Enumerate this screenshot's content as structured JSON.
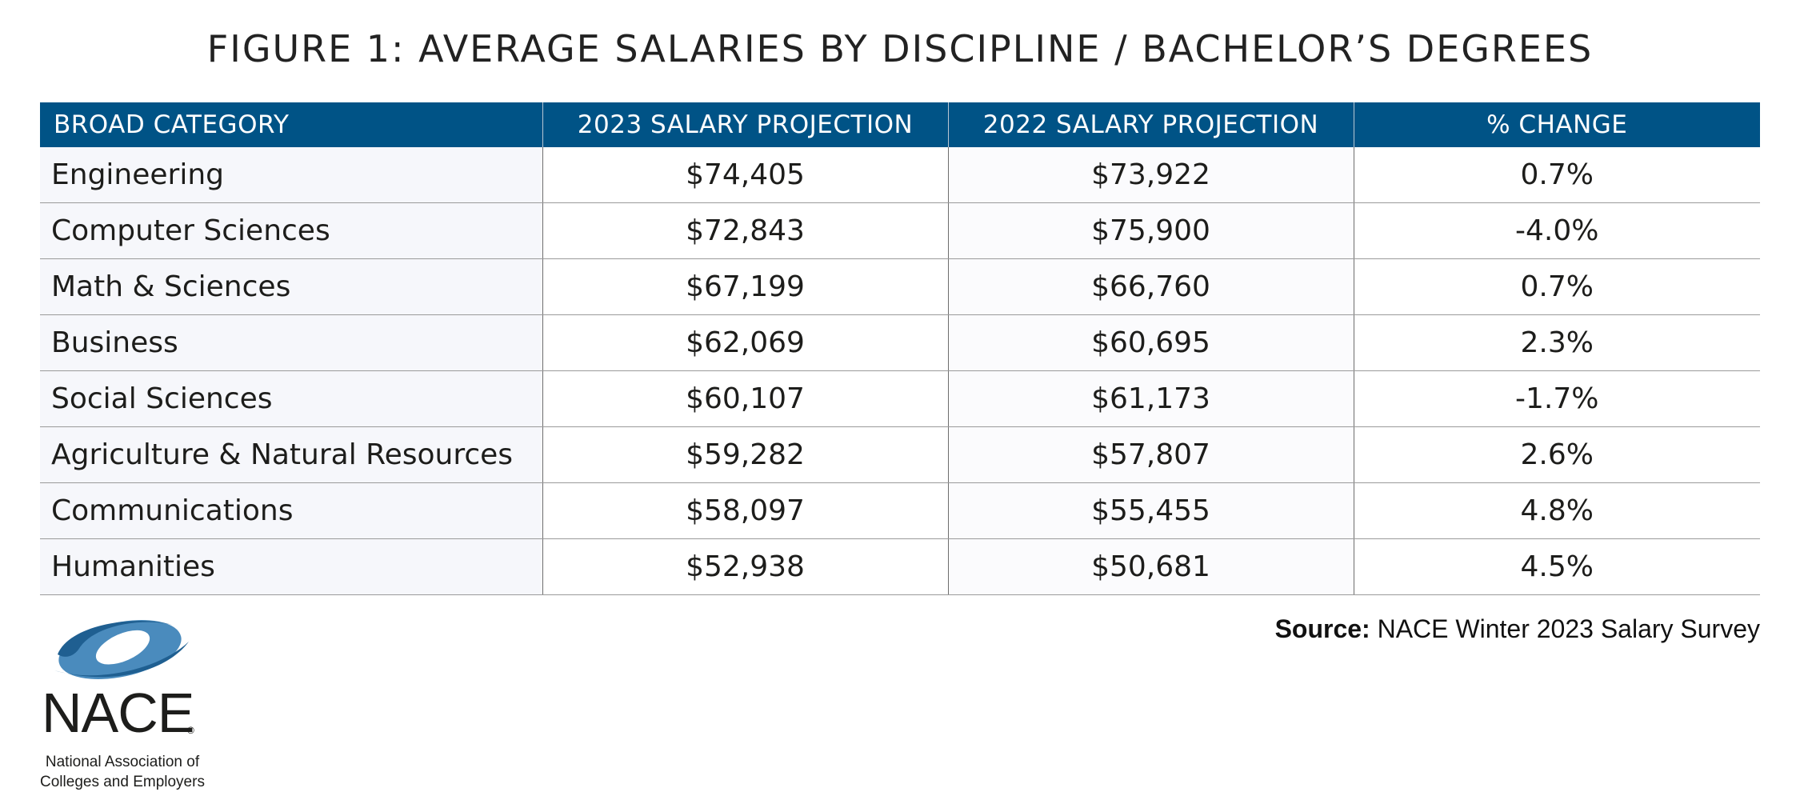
{
  "chart_data": {
    "type": "table",
    "title": "FIGURE 1: AVERAGE SALARIES BY DISCIPLINE / BACHELOR’S DEGREES",
    "columns": [
      "BROAD CATEGORY",
      "2023 SALARY PROJECTION",
      "2022 SALARY PROJECTION",
      "% CHANGE"
    ],
    "rows": [
      [
        "Engineering",
        "$74,405",
        "$73,922",
        "0.7%"
      ],
      [
        "Computer Sciences",
        "$72,843",
        "$75,900",
        "-4.0%"
      ],
      [
        "Math & Sciences",
        "$67,199",
        "$66,760",
        "0.7%"
      ],
      [
        "Business",
        "$62,069",
        "$60,695",
        "2.3%"
      ],
      [
        "Social Sciences",
        "$60,107",
        "$61,173",
        "-1.7%"
      ],
      [
        "Agriculture & Natural Resources",
        "$59,282",
        "$57,807",
        "2.6%"
      ],
      [
        "Communications",
        "$58,097",
        "$55,455",
        "4.8%"
      ],
      [
        "Humanities",
        "$52,938",
        "$50,681",
        "4.5%"
      ]
    ],
    "values_2023": [
      74405,
      72843,
      67199,
      62069,
      60107,
      59282,
      58097,
      52938
    ],
    "values_2022": [
      73922,
      75900,
      66760,
      60695,
      61173,
      57807,
      55455,
      50681
    ],
    "pct_change": [
      0.7,
      -4.0,
      0.7,
      2.3,
      -1.7,
      2.6,
      4.8,
      4.5
    ]
  },
  "source": {
    "label": "Source:",
    "text": "NACE Winter 2023 Salary Survey"
  },
  "logo": {
    "word": "NACE",
    "registered_mark": "®",
    "tagline_line1": "National Association of",
    "tagline_line2": "Colleges and Employers",
    "icon": "nace-swoosh-logo"
  },
  "colors": {
    "header_bg": "#005386",
    "header_text": "#ffffff",
    "logo_dark": "#1f5f91",
    "logo_light": "#4a8bbd"
  }
}
